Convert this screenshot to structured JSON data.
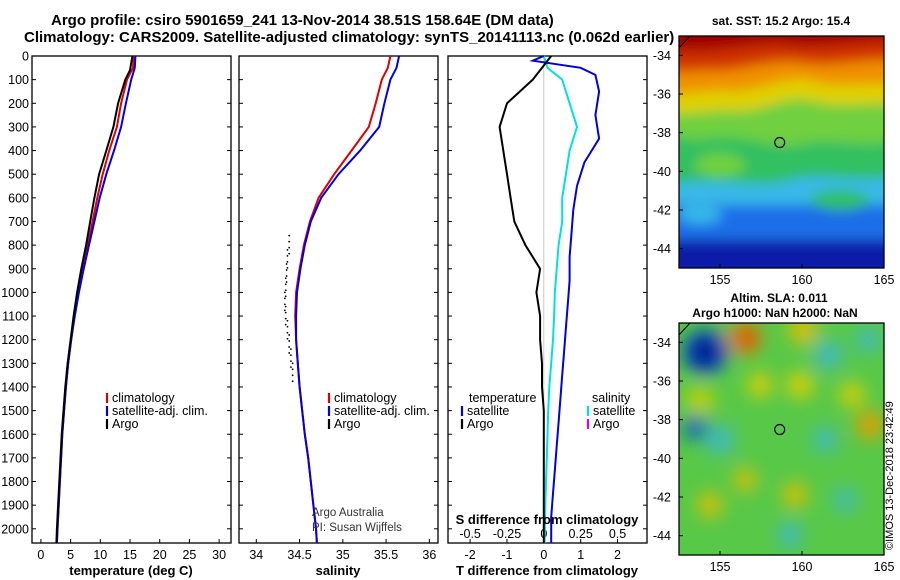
{
  "header": {
    "line1": "Argo profile: csiro 5901659_241 13-Nov-2014 38.51S 158.64E (DM data)",
    "line2": "Climatology: CARS2009. Satellite-adjusted climatology: synTS_20141113.nc (0.062d earlier)"
  },
  "colors": {
    "climatology": "#e00000",
    "satellite": "#0000e0",
    "argo": "#000000",
    "sat_salinity": "#00e0e0",
    "argo_salinity": "#e000e0"
  },
  "chart_data": [
    {
      "type": "line",
      "xlabel": "temperature (deg C)",
      "xlim": [
        -1.5,
        32
      ],
      "ylim": [
        2060,
        0
      ],
      "xticks": [
        0,
        5,
        10,
        15,
        20,
        25,
        30
      ],
      "yticks": [
        0,
        100,
        200,
        300,
        400,
        500,
        600,
        700,
        800,
        900,
        1000,
        1100,
        1200,
        1300,
        1400,
        1500,
        1600,
        1700,
        1800,
        1900,
        2000
      ],
      "legend": [
        {
          "key": "climatology",
          "label": "climatology"
        },
        {
          "key": "satellite",
          "label": "satellite-adj. clim."
        },
        {
          "key": "argo",
          "label": "Argo"
        }
      ],
      "series": [
        {
          "key": "climatology",
          "points": [
            [
              15.6,
              0
            ],
            [
              15.5,
              50
            ],
            [
              14.5,
              100
            ],
            [
              13.5,
              200
            ],
            [
              12.8,
              300
            ],
            [
              11.5,
              400
            ],
            [
              10.4,
              500
            ],
            [
              9.5,
              600
            ],
            [
              8.7,
              700
            ],
            [
              7.9,
              800
            ],
            [
              7.0,
              900
            ],
            [
              6.3,
              1000
            ],
            [
              5.6,
              1100
            ],
            [
              5.1,
              1200
            ],
            [
              4.6,
              1300
            ],
            [
              4.2,
              1400
            ],
            [
              3.9,
              1500
            ],
            [
              3.6,
              1600
            ],
            [
              3.4,
              1700
            ],
            [
              3.2,
              1800
            ],
            [
              3.0,
              1900
            ],
            [
              2.8,
              2000
            ],
            [
              2.7,
              2060
            ]
          ]
        },
        {
          "key": "satellite",
          "points": [
            [
              15.9,
              0
            ],
            [
              15.8,
              50
            ],
            [
              15.2,
              100
            ],
            [
              14.3,
              200
            ],
            [
              13.5,
              300
            ],
            [
              12.3,
              400
            ],
            [
              11.0,
              500
            ],
            [
              9.9,
              600
            ],
            [
              9.0,
              700
            ],
            [
              8.1,
              800
            ],
            [
              7.2,
              900
            ],
            [
              6.4,
              1000
            ],
            [
              5.7,
              1100
            ],
            [
              5.1,
              1200
            ],
            [
              4.6,
              1300
            ],
            [
              4.2,
              1400
            ],
            [
              3.9,
              1500
            ],
            [
              3.6,
              1600
            ],
            [
              3.4,
              1700
            ],
            [
              3.2,
              1800
            ],
            [
              3.0,
              1900
            ],
            [
              2.8,
              2000
            ],
            [
              2.7,
              2060
            ]
          ]
        },
        {
          "key": "argo",
          "points": [
            [
              15.4,
              0
            ],
            [
              15.0,
              60
            ],
            [
              14.2,
              100
            ],
            [
              13.0,
              200
            ],
            [
              12.2,
              300
            ],
            [
              11.0,
              400
            ],
            [
              9.8,
              500
            ],
            [
              9.0,
              600
            ],
            [
              8.3,
              700
            ],
            [
              7.6,
              800
            ],
            [
              6.8,
              900
            ],
            [
              6.1,
              1000
            ],
            [
              5.5,
              1100
            ],
            [
              5.0,
              1200
            ],
            [
              4.5,
              1300
            ],
            [
              4.1,
              1400
            ],
            [
              3.8,
              1500
            ],
            [
              3.5,
              1600
            ],
            [
              3.3,
              1700
            ],
            [
              3.1,
              1800
            ],
            [
              2.9,
              1900
            ],
            [
              2.7,
              2000
            ],
            [
              2.6,
              2060
            ]
          ]
        }
      ]
    },
    {
      "type": "line",
      "xlabel": "salinity",
      "xlim": [
        33.8,
        36.1
      ],
      "ylim": [
        2060,
        0
      ],
      "xticks": [
        34,
        34.5,
        35,
        35.5,
        36
      ],
      "xticklabels": [
        "34",
        "34.5",
        "35",
        "35.5",
        "36"
      ],
      "legend": [
        {
          "key": "climatology",
          "label": "climatology"
        },
        {
          "key": "satellite",
          "label": "satellite-adj. clim."
        },
        {
          "key": "argo",
          "label": "Argo"
        }
      ],
      "notes": [
        "Argo Australia",
        "PI: Susan Wijffels"
      ],
      "series": [
        {
          "key": "climatology",
          "points": [
            [
              35.55,
              0
            ],
            [
              35.52,
              50
            ],
            [
              35.45,
              100
            ],
            [
              35.38,
              200
            ],
            [
              35.3,
              300
            ],
            [
              35.1,
              400
            ],
            [
              34.9,
              500
            ],
            [
              34.72,
              600
            ],
            [
              34.62,
              700
            ],
            [
              34.55,
              800
            ],
            [
              34.5,
              900
            ],
            [
              34.46,
              1000
            ],
            [
              34.45,
              1100
            ],
            [
              34.46,
              1200
            ],
            [
              34.48,
              1300
            ],
            [
              34.5,
              1400
            ],
            [
              34.53,
              1500
            ],
            [
              34.56,
              1600
            ],
            [
              34.6,
              1700
            ],
            [
              34.63,
              1800
            ],
            [
              34.66,
              1900
            ],
            [
              34.69,
              2000
            ],
            [
              34.7,
              2060
            ]
          ]
        },
        {
          "key": "satellite",
          "points": [
            [
              35.65,
              0
            ],
            [
              35.62,
              50
            ],
            [
              35.55,
              100
            ],
            [
              35.48,
              200
            ],
            [
              35.42,
              300
            ],
            [
              35.2,
              400
            ],
            [
              34.95,
              500
            ],
            [
              34.75,
              600
            ],
            [
              34.63,
              700
            ],
            [
              34.56,
              800
            ],
            [
              34.51,
              900
            ],
            [
              34.47,
              1000
            ],
            [
              34.46,
              1100
            ],
            [
              34.46,
              1200
            ],
            [
              34.48,
              1300
            ],
            [
              34.5,
              1400
            ],
            [
              34.53,
              1500
            ],
            [
              34.56,
              1600
            ],
            [
              34.6,
              1700
            ],
            [
              34.63,
              1800
            ],
            [
              34.66,
              1900
            ],
            [
              34.69,
              2000
            ],
            [
              34.7,
              2060
            ]
          ]
        },
        {
          "key": "argo",
          "style": "dots",
          "points": [
            [
              34.38,
              760
            ],
            [
              34.36,
              820
            ],
            [
              34.35,
              880
            ],
            [
              34.34,
              940
            ],
            [
              34.33,
              1000
            ],
            [
              34.34,
              1060
            ],
            [
              34.36,
              1120
            ],
            [
              34.38,
              1180
            ],
            [
              34.4,
              1240
            ],
            [
              34.42,
              1300
            ]
          ]
        }
      ]
    },
    {
      "type": "line",
      "xlabel": "T difference from climatology",
      "xlabel2": "S difference from climatology",
      "xlim": [
        -2.6,
        2.8
      ],
      "ylim": [
        2060,
        0
      ],
      "xticks": [
        -2,
        -1,
        0,
        1,
        2
      ],
      "xticks2": [
        -0.5,
        -0.25,
        0,
        0.25,
        0.5
      ],
      "xticklabels2": [
        "-0.5",
        "-0.25",
        "0",
        "0.25",
        "0.5"
      ],
      "legend_left_title": "temperature",
      "legend_right_title": "salinity",
      "legend_left": [
        {
          "key": "satellite",
          "label": "satellite"
        },
        {
          "key": "argo",
          "label": "Argo"
        }
      ],
      "legend_right": [
        {
          "key": "sat_salinity",
          "label": "satellite"
        },
        {
          "key": "argo_salinity",
          "label": "Argo"
        }
      ],
      "series": [
        {
          "key": "sat_salinity",
          "points": [
            [
              0,
              0
            ],
            [
              0.1,
              50
            ],
            [
              0.5,
              100
            ],
            [
              0.7,
              200
            ],
            [
              0.9,
              300
            ],
            [
              0.7,
              400
            ],
            [
              0.6,
              500
            ],
            [
              0.5,
              600
            ],
            [
              0.5,
              700
            ],
            [
              0.4,
              800
            ],
            [
              0.35,
              900
            ],
            [
              0.3,
              1000
            ],
            [
              0.28,
              1100
            ],
            [
              0.25,
              1200
            ],
            [
              0.2,
              1300
            ],
            [
              0.15,
              1400
            ],
            [
              0.12,
              1500
            ],
            [
              0.1,
              1600
            ],
            [
              0.08,
              1700
            ],
            [
              0.06,
              1800
            ],
            [
              0.04,
              1900
            ],
            [
              0.03,
              2000
            ],
            [
              0.02,
              2060
            ]
          ]
        },
        {
          "key": "satellite",
          "points": [
            [
              0,
              0
            ],
            [
              -0.3,
              20
            ],
            [
              1.0,
              50
            ],
            [
              1.4,
              80
            ],
            [
              1.5,
              150
            ],
            [
              1.4,
              250
            ],
            [
              1.5,
              350
            ],
            [
              1.1,
              450
            ],
            [
              0.9,
              550
            ],
            [
              0.8,
              650
            ],
            [
              0.75,
              750
            ],
            [
              0.7,
              850
            ],
            [
              0.7,
              950
            ],
            [
              0.65,
              1050
            ],
            [
              0.6,
              1150
            ],
            [
              0.55,
              1250
            ],
            [
              0.5,
              1350
            ],
            [
              0.45,
              1450
            ],
            [
              0.4,
              1550
            ],
            [
              0.35,
              1650
            ],
            [
              0.3,
              1750
            ],
            [
              0.25,
              1850
            ],
            [
              0.2,
              1950
            ],
            [
              0.2,
              2060
            ]
          ]
        },
        {
          "key": "argo",
          "points": [
            [
              0.2,
              0
            ],
            [
              -0.3,
              100
            ],
            [
              -1.0,
              200
            ],
            [
              -1.2,
              300
            ],
            [
              -1.1,
              400
            ],
            [
              -1.0,
              500
            ],
            [
              -0.9,
              600
            ],
            [
              -0.8,
              700
            ],
            [
              -0.5,
              800
            ],
            [
              -0.1,
              900
            ],
            [
              -0.2,
              1000
            ],
            [
              -0.1,
              1100
            ],
            [
              -0.1,
              1200
            ],
            [
              -0.05,
              1300
            ],
            [
              -0.05,
              1400
            ],
            [
              0,
              1500
            ],
            [
              0,
              1600
            ],
            [
              0,
              1700
            ],
            [
              0,
              1800
            ],
            [
              0,
              1900
            ],
            [
              0,
              2000
            ],
            [
              0,
              2060
            ]
          ]
        }
      ]
    },
    {
      "type": "heatmap",
      "title": "sat. SST: 15.2 Argo: 15.4",
      "xlim": [
        152.5,
        165
      ],
      "ylim": [
        -45,
        -33
      ],
      "xticks": [
        155,
        160,
        165
      ],
      "yticks": [
        -34,
        -36,
        -38,
        -40,
        -42,
        -44
      ],
      "marker": [
        158.64,
        -38.51
      ]
    },
    {
      "type": "heatmap",
      "title": "Altim. SLA: 0.011",
      "subtitle": "Argo h1000: NaN h2000: NaN",
      "xlim": [
        152.5,
        165
      ],
      "ylim": [
        -45,
        -33
      ],
      "xticks": [
        155,
        160,
        165
      ],
      "yticks": [
        -34,
        -36,
        -38,
        -40,
        -42,
        -44
      ],
      "marker": [
        158.64,
        -38.51
      ]
    }
  ],
  "footer": {
    "credit": "©IMOS 13-Dec-2018 23:42:49"
  }
}
